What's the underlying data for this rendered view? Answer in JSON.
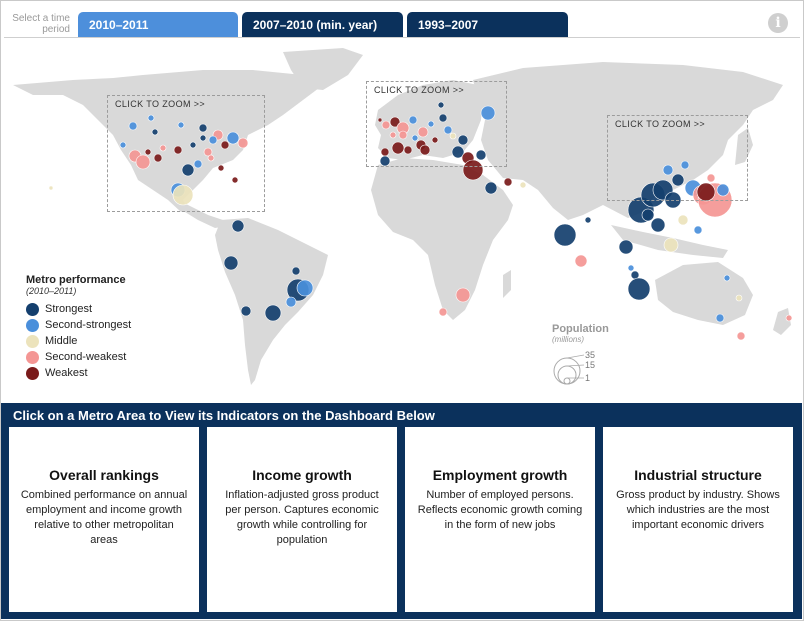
{
  "tabs": {
    "prompt": "Select a time period",
    "items": [
      {
        "label": "2010–2011",
        "active": true
      },
      {
        "label": "2007–2010 (min. year)",
        "active": false
      },
      {
        "label": "1993–2007",
        "active": false
      }
    ],
    "info_icon": "info-icon"
  },
  "map": {
    "zoom_label": "CLICK TO ZOOM >>",
    "zoom_regions": [
      "North America",
      "Europe",
      "East Asia"
    ],
    "legend": {
      "title": "Metro performance",
      "subtitle": "(2010–2011)",
      "items": [
        {
          "label": "Strongest",
          "color": "#143f6e"
        },
        {
          "label": "Second-strongest",
          "color": "#4a8fdb"
        },
        {
          "label": "Middle",
          "color": "#ece3bc"
        },
        {
          "label": "Second-weakest",
          "color": "#f49694"
        },
        {
          "label": "Weakest",
          "color": "#7a1a1a"
        }
      ]
    },
    "population_legend": {
      "title": "Population",
      "subtitle": "(millions)",
      "values": [
        "35",
        "15",
        "1"
      ]
    }
  },
  "dashboard": {
    "title": "Click on a Metro Area to View its Indicators on the Dashboard Below",
    "cards": [
      {
        "title": "Overall rankings",
        "description": "Combined performance on annual employment and income growth relative to other metropolitan areas"
      },
      {
        "title": "Income growth",
        "description": "Inflation-adjusted gross product per person. Captures economic growth while controlling for population"
      },
      {
        "title": "Employment growth",
        "description": "Number of employed persons. Reflects economic growth coming in the form of new jobs"
      },
      {
        "title": "Industrial structure",
        "description": "Gross product by industry. Shows which industries are the most important economic drivers"
      }
    ]
  }
}
